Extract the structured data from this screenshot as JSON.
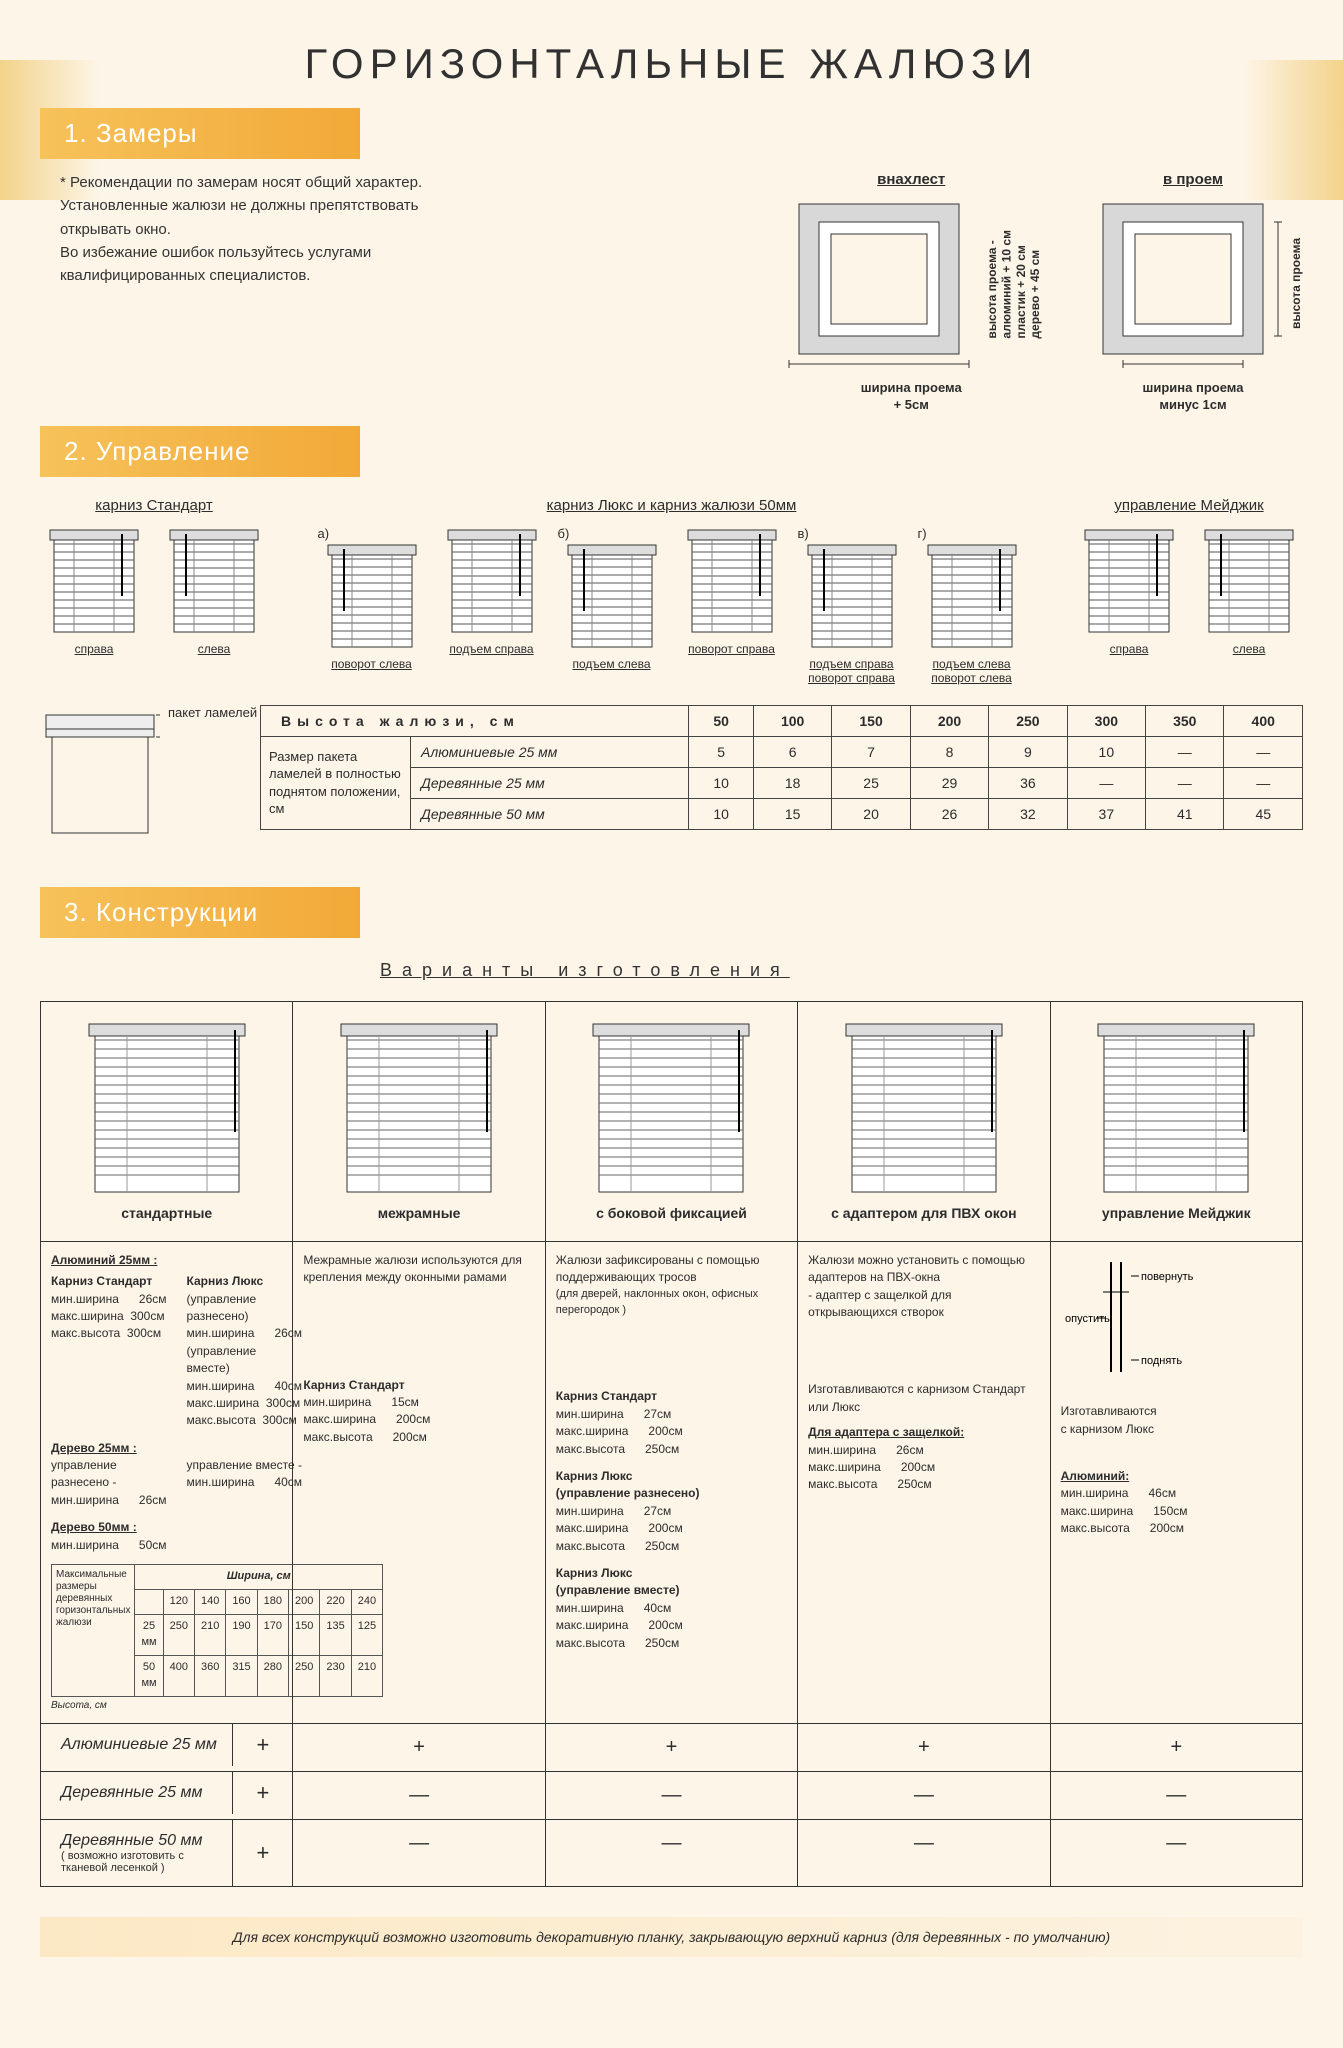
{
  "title": "ГОРИЗОНТАЛЬНЫЕ ЖАЛЮЗИ",
  "section1": {
    "header": "1. Замеры",
    "note": "* Рекомендации по замерам носят общий характер.\nУстановленные жалюзи не должны препятствовать открывать окно.\nВо избежание ошибок пользуйтесь услугами квалифицированных специалистов.",
    "windows": [
      {
        "top": "внахлест",
        "side": "высота проема -\nалюминий + 10 см\nпластик + 20 см\nдерево + 45 см",
        "bottom": "ширина проема\n+ 5см"
      },
      {
        "top": "в проем",
        "side": "высота проема",
        "bottom": "ширина проема\nминус 1см"
      }
    ]
  },
  "section2": {
    "header": "2. Управление",
    "groups": [
      {
        "title": "карниз Стандарт",
        "items": [
          "справа",
          "слева"
        ]
      },
      {
        "title": "карниз Люкс и карниз жалюзи 50мм",
        "items": [
          "поворот слева",
          "подъем справа",
          "подъем слева",
          "поворот справа",
          "подъем справа поворот справа",
          "подъем слева поворот слева"
        ],
        "prefixes": [
          "а)",
          "",
          "б)",
          "",
          "в)",
          "г)"
        ]
      },
      {
        "title": "управление Мейджик",
        "items": [
          "справа",
          "слева"
        ]
      }
    ],
    "height_table": {
      "left_label": "пакет ламелей",
      "header": "Высота жалюзи, см",
      "cols": [
        "50",
        "100",
        "150",
        "200",
        "250",
        "300",
        "350",
        "400"
      ],
      "side": "Размер пакета ламелей в полностью поднятом положении, см",
      "rows": [
        {
          "label": "Алюминиевые 25 мм",
          "vals": [
            "5",
            "6",
            "7",
            "8",
            "9",
            "10",
            "—",
            "—"
          ]
        },
        {
          "label": "Деревянные 25 мм",
          "vals": [
            "10",
            "18",
            "25",
            "29",
            "36",
            "—",
            "—",
            "—"
          ]
        },
        {
          "label": "Деревянные 50 мм",
          "vals": [
            "10",
            "15",
            "20",
            "26",
            "32",
            "37",
            "41",
            "45"
          ]
        }
      ]
    }
  },
  "section3": {
    "header": "3. Конструкции",
    "variants_title": "Варианты изготовления",
    "cols": [
      "стандартные",
      "межрамные",
      "с боковой фиксацией",
      "с адаптером для ПВХ окон",
      "управление Мейджик"
    ],
    "info": {
      "col1": {
        "alu25_title": "Алюминий 25мм :",
        "karniz_std": "Карниз Стандарт",
        "karniz_lux": "Карниз Люкс",
        "lux_note1": "(управление разнесено)",
        "lux_note2": "(управление вместе)",
        "min_w": "мин.ширина",
        "max_w": "макс.ширина",
        "max_h": "макс.высота",
        "v26": "26см",
        "v300": "300см",
        "v40": "40см",
        "wood25": "Дерево 25мм :",
        "wood25_a": "управление разнесено -",
        "wood25_b": "управление вместе -",
        "wood50": "Дерево 50мм :",
        "v50": "50см",
        "matrix": {
          "caption_left": "Максимальные размеры деревянных горизонтальных жалюзи",
          "caption_top": "Ширина, см",
          "caption_side": "Высота, см",
          "widths": [
            "120",
            "140",
            "160",
            "180",
            "200",
            "220",
            "240"
          ],
          "rows": [
            {
              "label": "25 мм",
              "vals": [
                "250",
                "210",
                "190",
                "170",
                "150",
                "135",
                "125"
              ]
            },
            {
              "label": "50 мм",
              "vals": [
                "400",
                "360",
                "315",
                "280",
                "250",
                "230",
                "210"
              ]
            }
          ]
        }
      },
      "col2": {
        "desc": "Межрамные жалюзи используются для крепления между оконными рамами",
        "ks": "Карниз Стандарт",
        "specs": [
          [
            "мин.ширина",
            "15см"
          ],
          [
            "макс.ширина",
            "200см"
          ],
          [
            "макс.высота",
            "200см"
          ]
        ]
      },
      "col3": {
        "desc": "Жалюзи зафиксированы с помощью поддерживающих тросов",
        "note": "(для дверей, наклонных окон, офисных перегородок )",
        "ks": "Карниз Стандарт",
        "ks_specs": [
          [
            "мин.ширина",
            "27см"
          ],
          [
            "макс.ширина",
            "200см"
          ],
          [
            "макс.высота",
            "250см"
          ]
        ],
        "kl1": "Карниз Люкс\n(управление разнесено)",
        "kl1_specs": [
          [
            "мин.ширина",
            "27см"
          ],
          [
            "макс.ширина",
            "200см"
          ],
          [
            "макс.высота",
            "250см"
          ]
        ],
        "kl2": "Карниз Люкс\n(управление вместе)",
        "kl2_specs": [
          [
            "мин.ширина",
            "40см"
          ],
          [
            "макс.ширина",
            "200см"
          ],
          [
            "макс.высота",
            "250см"
          ]
        ]
      },
      "col4": {
        "desc": "Жалюзи можно установить с помощью адаптеров на ПВХ-окна\n- адаптер с защелкой для открывающихся створок",
        "made": "Изготавливаются с карнизом Стандарт или Люкс",
        "adapter_title": "Для адаптера с защелкой:",
        "specs": [
          [
            "мин.ширина",
            "26см"
          ],
          [
            "макс.ширина",
            "200см"
          ],
          [
            "макс.высота",
            "250см"
          ]
        ]
      },
      "col5": {
        "made": "Изготавливаются\nс карнизом Люкс",
        "labels": [
          "повернуть",
          "опустить",
          "поднять"
        ],
        "alu": "Алюминий:",
        "specs": [
          [
            "мин.ширина",
            "46см"
          ],
          [
            "макс.ширина",
            "150см"
          ],
          [
            "макс.высота",
            "200см"
          ]
        ]
      }
    },
    "compat": {
      "rows": [
        {
          "label": "Алюминиевые 25 мм",
          "sub": "",
          "vals": [
            "+",
            "+",
            "+",
            "+",
            "+"
          ]
        },
        {
          "label": "Деревянные 25 мм",
          "sub": "",
          "vals": [
            "+",
            "—",
            "—",
            "—",
            "—"
          ]
        },
        {
          "label": "Деревянные 50 мм",
          "sub": "( возможно изготовить с тканевой лесенкой )",
          "vals": [
            "+",
            "—",
            "—",
            "—",
            "—"
          ]
        }
      ]
    },
    "footer": "Для всех конструкций возможно изготовить декоративную планку, закрывающую верхний карниз (для деревянных - по умолчанию)"
  }
}
